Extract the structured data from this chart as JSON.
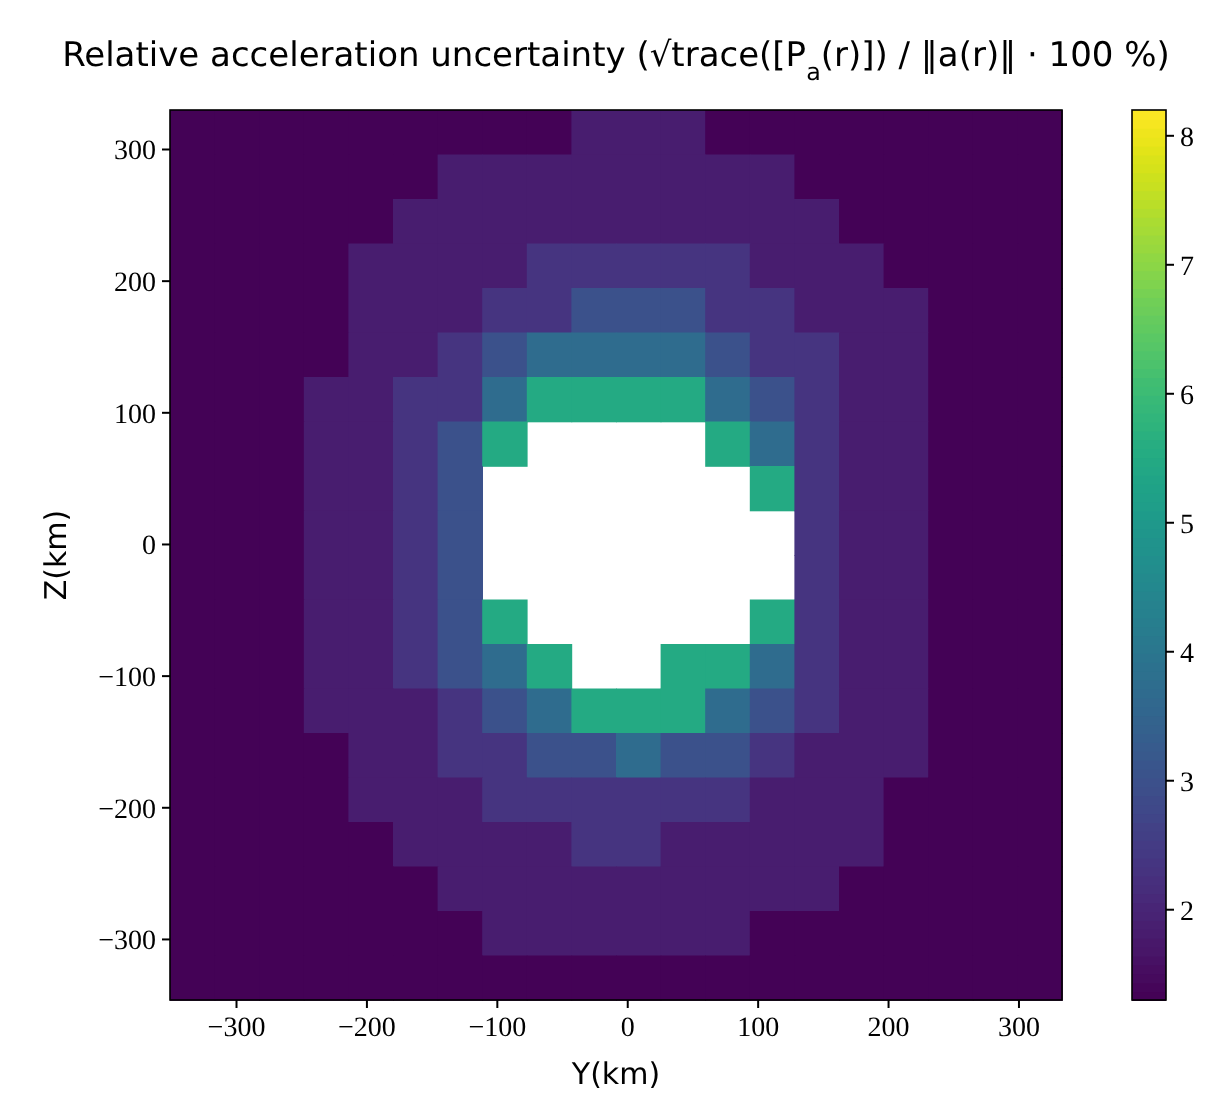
{
  "chart_data": {
    "type": "heatmap",
    "title": "Relative acceleration uncertainty (√trace([P$_{a}$(r)]) / ‖a(r)‖ · 100 %)",
    "xlabel": "Y(km)",
    "ylabel": "Z(km)",
    "xlim": [
      -351,
      333
    ],
    "ylim": [
      -346,
      330
    ],
    "xticks": [
      -300,
      -200,
      -100,
      0,
      100,
      200,
      300
    ],
    "yticks": [
      -300,
      -200,
      -100,
      0,
      100,
      200,
      300
    ],
    "clim": [
      1.3,
      8.2
    ],
    "cticks": [
      2,
      3,
      4,
      5,
      6,
      7,
      8
    ],
    "cells": [
      [
        1.35,
        1.35,
        1.35,
        1.35,
        1.35,
        1.35,
        1.35,
        1.35,
        1.35,
        1.85,
        1.85,
        1.85,
        1.35,
        1.35,
        1.35,
        1.35,
        1.35,
        1.35,
        1.35,
        1.35
      ],
      [
        1.35,
        1.35,
        1.35,
        1.35,
        1.35,
        1.35,
        1.85,
        1.85,
        1.85,
        1.85,
        1.85,
        1.85,
        1.85,
        1.85,
        1.35,
        1.35,
        1.35,
        1.35,
        1.35,
        1.35
      ],
      [
        1.35,
        1.35,
        1.35,
        1.35,
        1.35,
        1.85,
        1.85,
        1.85,
        1.85,
        1.85,
        1.85,
        1.85,
        1.85,
        1.85,
        1.85,
        1.35,
        1.35,
        1.35,
        1.35,
        1.35
      ],
      [
        1.35,
        1.35,
        1.35,
        1.35,
        1.85,
        1.85,
        1.85,
        1.85,
        2.35,
        2.35,
        2.35,
        2.35,
        2.35,
        1.85,
        1.85,
        1.85,
        1.35,
        1.35,
        1.35,
        1.35
      ],
      [
        1.35,
        1.35,
        1.35,
        1.35,
        1.85,
        1.85,
        1.85,
        2.35,
        2.35,
        3.0,
        3.0,
        3.0,
        2.35,
        2.35,
        1.85,
        1.85,
        1.85,
        1.35,
        1.35,
        1.35
      ],
      [
        1.35,
        1.35,
        1.35,
        1.35,
        1.85,
        1.85,
        2.35,
        3.0,
        3.7,
        3.7,
        3.7,
        3.7,
        3.0,
        2.35,
        2.35,
        1.85,
        1.85,
        1.35,
        1.35,
        1.35
      ],
      [
        1.35,
        1.35,
        1.35,
        1.85,
        1.85,
        2.35,
        2.35,
        3.7,
        5.5,
        5.5,
        5.5,
        5.5,
        3.7,
        3.0,
        2.35,
        1.85,
        1.85,
        1.35,
        1.35,
        1.35
      ],
      [
        1.35,
        1.35,
        1.35,
        1.85,
        1.85,
        2.35,
        3.0,
        5.5,
        null,
        null,
        null,
        null,
        5.5,
        3.7,
        2.35,
        1.85,
        1.85,
        1.35,
        1.35,
        1.35
      ],
      [
        1.35,
        1.35,
        1.35,
        1.85,
        1.85,
        2.35,
        3.0,
        null,
        null,
        null,
        null,
        null,
        null,
        5.5,
        2.35,
        1.85,
        1.85,
        1.35,
        1.35,
        1.35
      ],
      [
        1.35,
        1.35,
        1.35,
        1.85,
        1.85,
        2.35,
        3.0,
        null,
        null,
        null,
        null,
        null,
        null,
        null,
        2.35,
        1.85,
        1.85,
        1.35,
        1.35,
        1.35
      ],
      [
        1.35,
        1.35,
        1.35,
        1.85,
        1.85,
        2.35,
        3.0,
        null,
        null,
        null,
        null,
        null,
        null,
        null,
        2.35,
        1.85,
        1.85,
        1.35,
        1.35,
        1.35
      ],
      [
        1.35,
        1.35,
        1.35,
        1.85,
        1.85,
        2.35,
        3.0,
        5.5,
        null,
        null,
        null,
        null,
        null,
        5.5,
        2.35,
        1.85,
        1.85,
        1.35,
        1.35,
        1.35
      ],
      [
        1.35,
        1.35,
        1.35,
        1.85,
        1.85,
        2.35,
        3.0,
        3.7,
        5.5,
        null,
        null,
        5.5,
        5.5,
        3.7,
        2.35,
        1.85,
        1.85,
        1.35,
        1.35,
        1.35
      ],
      [
        1.35,
        1.35,
        1.35,
        1.85,
        1.85,
        1.85,
        2.35,
        3.0,
        3.7,
        5.5,
        5.5,
        5.5,
        3.7,
        3.0,
        2.35,
        1.85,
        1.85,
        1.35,
        1.35,
        1.35
      ],
      [
        1.35,
        1.35,
        1.35,
        1.35,
        1.85,
        1.85,
        2.35,
        2.35,
        3.0,
        3.0,
        3.7,
        3.0,
        3.0,
        2.35,
        1.85,
        1.85,
        1.85,
        1.35,
        1.35,
        1.35
      ],
      [
        1.35,
        1.35,
        1.35,
        1.35,
        1.85,
        1.85,
        1.85,
        2.35,
        2.35,
        2.35,
        2.35,
        2.35,
        2.35,
        1.85,
        1.85,
        1.85,
        1.35,
        1.35,
        1.35,
        1.35
      ],
      [
        1.35,
        1.35,
        1.35,
        1.35,
        1.35,
        1.85,
        1.85,
        1.85,
        1.85,
        2.35,
        2.35,
        1.85,
        1.85,
        1.85,
        1.85,
        1.85,
        1.35,
        1.35,
        1.35,
        1.35
      ],
      [
        1.35,
        1.35,
        1.35,
        1.35,
        1.35,
        1.35,
        1.85,
        1.85,
        1.85,
        1.85,
        1.85,
        1.85,
        1.85,
        1.85,
        1.85,
        1.35,
        1.35,
        1.35,
        1.35,
        1.35
      ],
      [
        1.35,
        1.35,
        1.35,
        1.35,
        1.35,
        1.35,
        1.35,
        1.85,
        1.85,
        1.85,
        1.85,
        1.85,
        1.85,
        1.35,
        1.35,
        1.35,
        1.35,
        1.35,
        1.35,
        1.35
      ],
      [
        1.35,
        1.35,
        1.35,
        1.35,
        1.35,
        1.35,
        1.35,
        1.35,
        1.35,
        1.35,
        1.35,
        1.35,
        1.35,
        1.35,
        1.35,
        1.35,
        1.35,
        1.35,
        1.35,
        1.35
      ]
    ]
  }
}
